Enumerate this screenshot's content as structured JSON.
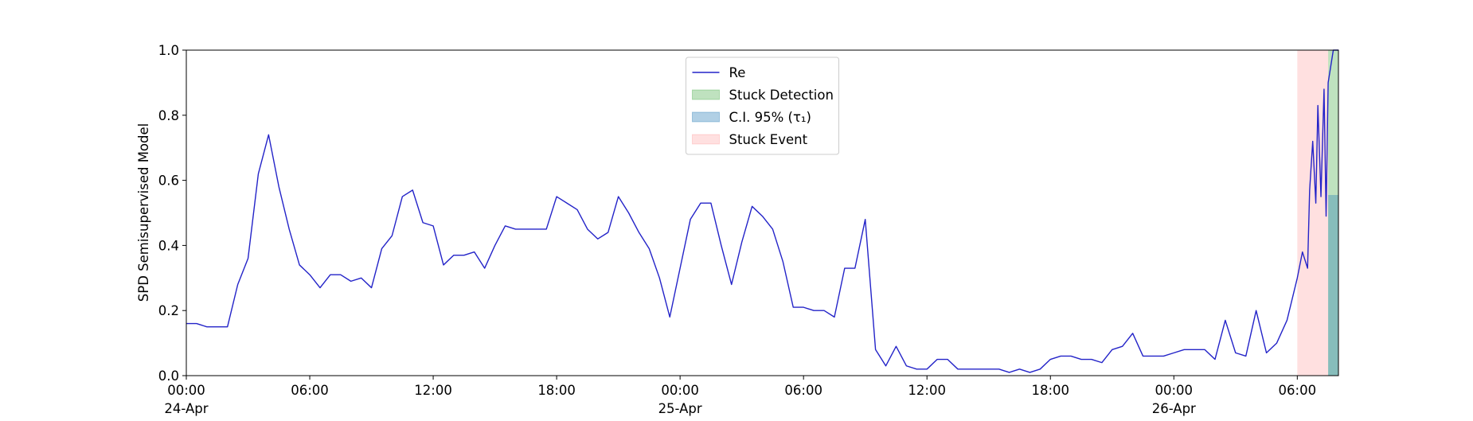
{
  "chart_data": {
    "type": "line",
    "y_label": "SPD Semisupervised Model",
    "xlim": [
      "1900-04-24T00:00",
      "1900-04-26T08:00"
    ],
    "xticks": [
      {
        "value": "1900-04-24T00:00",
        "label": "00:00\n24-Apr\n1900"
      },
      {
        "value": "1900-04-24T06:00",
        "label": "06:00"
      },
      {
        "value": "1900-04-24T12:00",
        "label": "12:00"
      },
      {
        "value": "1900-04-24T18:00",
        "label": "18:00"
      },
      {
        "value": "1900-04-25T00:00",
        "label": "00:00\n25-Apr"
      },
      {
        "value": "1900-04-25T06:00",
        "label": "06:00"
      },
      {
        "value": "1900-04-25T12:00",
        "label": "12:00"
      },
      {
        "value": "1900-04-25T18:00",
        "label": "18:00"
      },
      {
        "value": "1900-04-26T00:00",
        "label": "00:00\n26-Apr"
      },
      {
        "value": "1900-04-26T06:00",
        "label": "06:00"
      }
    ],
    "ylim": [
      0,
      1
    ],
    "yticks": [
      {
        "value": 0,
        "label": "0.0"
      },
      0.2,
      0.4,
      0.6,
      0.8,
      {
        "value": 1,
        "label": "1.0"
      }
    ],
    "legend": "upper center",
    "x": [
      "1900-04-24T00:00",
      "1900-04-24T00:30",
      "1900-04-24T01:00",
      "1900-04-24T01:30",
      "1900-04-24T02:00",
      "1900-04-24T02:30",
      "1900-04-24T03:00",
      "1900-04-24T03:30",
      "1900-04-24T04:00",
      "1900-04-24T04:30",
      "1900-04-24T05:00",
      "1900-04-24T05:30",
      "1900-04-24T06:00",
      "1900-04-24T06:30",
      "1900-04-24T07:00",
      "1900-04-24T07:30",
      "1900-04-24T08:00",
      "1900-04-24T08:30",
      "1900-04-24T09:00",
      "1900-04-24T09:30",
      "1900-04-24T10:00",
      "1900-04-24T10:30",
      "1900-04-24T11:00",
      "1900-04-24T11:30",
      "1900-04-24T12:00",
      "1900-04-24T12:30",
      "1900-04-24T13:00",
      "1900-04-24T13:30",
      "1900-04-24T14:00",
      "1900-04-24T14:30",
      "1900-04-24T15:00",
      "1900-04-24T15:30",
      "1900-04-24T16:00",
      "1900-04-24T16:30",
      "1900-04-24T17:00",
      "1900-04-24T17:30",
      "1900-04-24T18:00",
      "1900-04-24T18:30",
      "1900-04-24T19:00",
      "1900-04-24T19:30",
      "1900-04-24T20:00",
      "1900-04-24T20:30",
      "1900-04-24T21:00",
      "1900-04-24T21:30",
      "1900-04-24T22:00",
      "1900-04-24T22:30",
      "1900-04-24T23:00",
      "1900-04-24T23:30",
      "1900-04-25T00:00",
      "1900-04-25T00:30",
      "1900-04-25T01:00",
      "1900-04-25T01:30",
      "1900-04-25T02:00",
      "1900-04-25T02:30",
      "1900-04-25T03:00",
      "1900-04-25T03:30",
      "1900-04-25T04:00",
      "1900-04-25T04:30",
      "1900-04-25T05:00",
      "1900-04-25T05:30",
      "1900-04-25T06:00",
      "1900-04-25T06:30",
      "1900-04-25T07:00",
      "1900-04-25T07:30",
      "1900-04-25T08:00",
      "1900-04-25T08:30",
      "1900-04-25T09:00",
      "1900-04-25T09:30",
      "1900-04-25T10:00",
      "1900-04-25T10:30",
      "1900-04-25T11:00",
      "1900-04-25T11:30",
      "1900-04-25T12:00",
      "1900-04-25T12:30",
      "1900-04-25T13:00",
      "1900-04-25T13:30",
      "1900-04-25T14:00",
      "1900-04-25T14:30",
      "1900-04-25T15:00",
      "1900-04-25T15:30",
      "1900-04-25T16:00",
      "1900-04-25T16:30",
      "1900-04-25T17:00",
      "1900-04-25T17:30",
      "1900-04-25T18:00",
      "1900-04-25T18:30",
      "1900-04-25T19:00",
      "1900-04-25T19:30",
      "1900-04-25T20:00",
      "1900-04-25T20:30",
      "1900-04-25T21:00",
      "1900-04-25T21:30",
      "1900-04-25T22:00",
      "1900-04-25T22:30",
      "1900-04-25T23:00",
      "1900-04-25T23:30",
      "1900-04-26T00:00",
      "1900-04-26T00:30",
      "1900-04-26T01:00",
      "1900-04-26T01:30",
      "1900-04-26T02:00",
      "1900-04-26T02:30",
      "1900-04-26T03:00",
      "1900-04-26T03:30",
      "1900-04-26T04:00",
      "1900-04-26T04:30",
      "1900-04-26T05:00",
      "1900-04-26T05:30",
      "1900-04-26T06:00",
      "1900-04-26T06:15",
      "1900-04-26T06:30",
      "1900-04-26T06:36",
      "1900-04-26T06:45",
      "1900-04-26T06:54",
      "1900-04-26T07:00",
      "1900-04-26T07:09",
      "1900-04-26T07:18",
      "1900-04-26T07:24",
      "1900-04-26T07:30",
      "1900-04-26T07:45",
      "1900-04-26T08:00"
    ],
    "series": [
      {
        "name": "Re",
        "color": "#2323c8",
        "values": [
          0.16,
          0.16,
          0.15,
          0.15,
          0.15,
          0.28,
          0.36,
          0.62,
          0.74,
          0.58,
          0.45,
          0.34,
          0.31,
          0.27,
          0.31,
          0.31,
          0.29,
          0.3,
          0.27,
          0.39,
          0.43,
          0.55,
          0.57,
          0.47,
          0.46,
          0.34,
          0.37,
          0.37,
          0.38,
          0.33,
          0.4,
          0.46,
          0.45,
          0.45,
          0.45,
          0.45,
          0.55,
          0.53,
          0.51,
          0.45,
          0.42,
          0.44,
          0.55,
          0.5,
          0.44,
          0.39,
          0.3,
          0.18,
          0.33,
          0.48,
          0.53,
          0.53,
          0.4,
          0.28,
          0.41,
          0.52,
          0.49,
          0.45,
          0.35,
          0.21,
          0.21,
          0.2,
          0.2,
          0.18,
          0.33,
          0.33,
          0.48,
          0.08,
          0.03,
          0.09,
          0.03,
          0.02,
          0.02,
          0.05,
          0.05,
          0.02,
          0.02,
          0.02,
          0.02,
          0.02,
          0.01,
          0.02,
          0.01,
          0.02,
          0.05,
          0.06,
          0.06,
          0.05,
          0.05,
          0.04,
          0.08,
          0.09,
          0.13,
          0.06,
          0.06,
          0.06,
          0.07,
          0.08,
          0.08,
          0.08,
          0.05,
          0.17,
          0.07,
          0.06,
          0.2,
          0.07,
          0.1,
          0.17,
          0.3,
          0.38,
          0.33,
          0.57,
          0.72,
          0.53,
          0.83,
          0.55,
          0.88,
          0.49,
          0.9,
          1.0,
          1.0
        ]
      }
    ],
    "spans": [
      {
        "name": "Stuck Detection",
        "color": "#2ca02c",
        "alpha": 0.3,
        "x": [
          "1900-04-26T07:30",
          "1900-04-26T08:00"
        ]
      },
      {
        "name": "C.I. 95% (τ₁)",
        "color": "#1f77b4",
        "alpha": 0.35,
        "x": [
          "1900-04-26T07:30",
          "1900-04-26T08:00"
        ],
        "y": [
          0,
          0.555
        ]
      },
      {
        "name": "Stuck Event",
        "color": "#ff0000",
        "alpha": 0.12,
        "x": [
          "1900-04-26T06:00",
          "1900-04-26T07:30"
        ]
      }
    ]
  }
}
